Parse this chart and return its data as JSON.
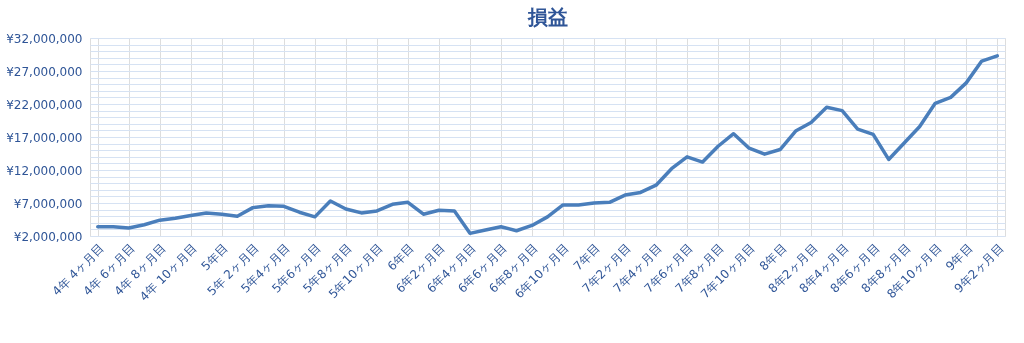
{
  "chart_data": {
    "type": "line",
    "title": "損益",
    "categories": [
      "4年 4ヶ月目",
      null,
      "4年 6ヶ月目",
      null,
      "4年 8ヶ月目",
      null,
      "4年 10ヶ月目",
      null,
      "5年目",
      null,
      "5年 2ヶ月目",
      null,
      "5年4ヶ月目",
      null,
      "5年6ヶ月目",
      null,
      "5年8ヶ月目",
      null,
      "5年10ヶ月目",
      null,
      "6年目",
      null,
      "6年2ヶ月目",
      null,
      "6年4ヶ月目",
      null,
      "6年6ヶ月目",
      null,
      "6年8ヶ月目",
      null,
      "6年10ヶ月目",
      null,
      "7年目",
      null,
      "7年2ヶ月目",
      null,
      "7年4ヶ月目",
      null,
      "7年6ヶ月目",
      null,
      "7年8ヶ月目",
      null,
      "7年10ヶ月目",
      null,
      "8年目",
      null,
      "8年2ヶ月目",
      null,
      "8年4ヶ月目",
      null,
      "8年6ヶ月目",
      null,
      "8年8ヶ月目",
      null,
      "8年10ヶ月目",
      null,
      "9年目",
      null,
      "9年2ヶ月目"
    ],
    "series": [
      {
        "color": "#4a7ebb",
        "values": [
          3400000,
          3400000,
          3200000,
          3700000,
          4400000,
          4700000,
          5100000,
          5500000,
          5300000,
          5000000,
          6300000,
          6600000,
          6500000,
          5600000,
          4900000,
          7300000,
          6100000,
          5500000,
          5800000,
          6800000,
          7100000,
          5300000,
          5900000,
          5800000,
          2400000,
          2900000,
          3400000,
          2800000,
          3600000,
          4900000,
          6700000,
          6700000,
          7000000,
          7100000,
          8200000,
          8600000,
          9700000,
          12200000,
          14000000,
          13200000,
          15600000,
          17500000,
          15300000,
          14400000,
          15100000,
          17900000,
          19200000,
          21500000,
          21000000,
          18200000,
          17400000,
          13600000,
          16100000,
          18600000,
          22100000,
          23000000,
          25200000,
          28500000,
          29300000
        ]
      }
    ],
    "ylim": [
      2000000,
      32000000
    ],
    "yticks": [
      {
        "value": 2000000,
        "label": "¥2,000,000"
      },
      {
        "value": 3000000,
        "label": null
      },
      {
        "value": 4000000,
        "label": null
      },
      {
        "value": 5000000,
        "label": null
      },
      {
        "value": 6000000,
        "label": null
      },
      {
        "value": 7000000,
        "label": "¥7,000,000"
      },
      {
        "value": 8000000,
        "label": null
      },
      {
        "value": 9000000,
        "label": null
      },
      {
        "value": 10000000,
        "label": null
      },
      {
        "value": 11000000,
        "label": null
      },
      {
        "value": 12000000,
        "label": "¥12,000,000"
      },
      {
        "value": 13000000,
        "label": null
      },
      {
        "value": 14000000,
        "label": null
      },
      {
        "value": 15000000,
        "label": null
      },
      {
        "value": 16000000,
        "label": null
      },
      {
        "value": 17000000,
        "label": "¥17,000,000"
      },
      {
        "value": 18000000,
        "label": null
      },
      {
        "value": 19000000,
        "label": null
      },
      {
        "value": 20000000,
        "label": null
      },
      {
        "value": 21000000,
        "label": null
      },
      {
        "value": 22000000,
        "label": "¥22,000,000"
      },
      {
        "value": 23000000,
        "label": null
      },
      {
        "value": 24000000,
        "label": null
      },
      {
        "value": 25000000,
        "label": null
      },
      {
        "value": 26000000,
        "label": null
      },
      {
        "value": 27000000,
        "label": "¥27,000,000"
      },
      {
        "value": 28000000,
        "label": null
      },
      {
        "value": 29000000,
        "label": null
      },
      {
        "value": 30000000,
        "label": null
      },
      {
        "value": 31000000,
        "label": null
      },
      {
        "value": 32000000,
        "label": "¥32,000,000"
      }
    ],
    "grid": true,
    "legend": false,
    "marker": "none",
    "line_style": "solid"
  }
}
